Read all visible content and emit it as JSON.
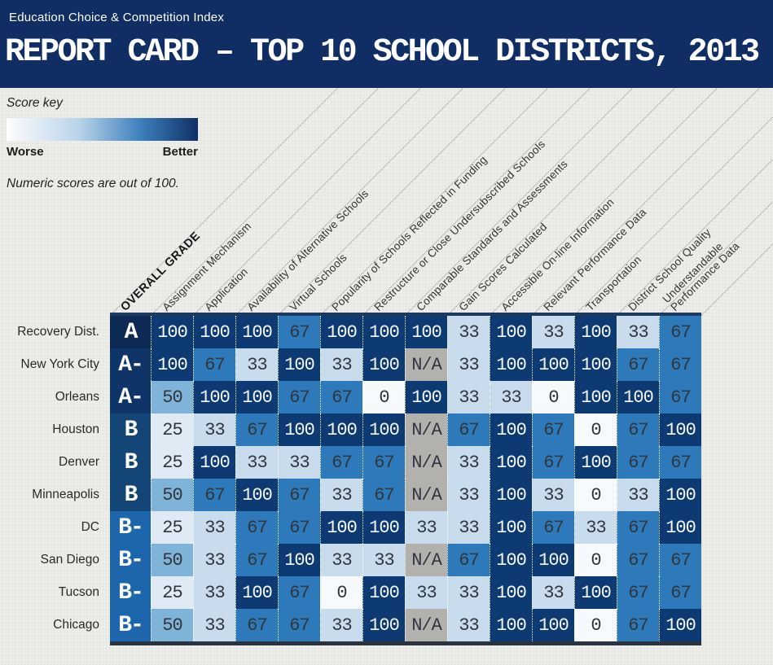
{
  "header": {
    "eyebrow": "Education Choice & Competition Index",
    "title": "REPORT CARD – TOP 10 SCHOOL DISTRICTS, 2013"
  },
  "score_key": {
    "label": "Score key",
    "worse": "Worse",
    "better": "Better",
    "note": "Numeric scores are out of 100."
  },
  "chart_data": {
    "type": "heatmap",
    "title": "REPORT CARD – TOP 10 SCHOOL DISTRICTS, 2013",
    "subtitle": "Education Choice & Competition Index",
    "scale": {
      "min_label": "Worse",
      "max_label": "Better",
      "note": "Numeric scores are out of 100.",
      "max": 100
    },
    "grade_column_header": "OVERALL GRADE",
    "columns": [
      "Assignment Mechanism",
      "Application",
      "Availability of Alternative Schools",
      "Virtual Schools",
      "Popularity of Schools Reflected in Funding",
      "Restructure or Close Undersubscribed Schools",
      "Comparable Standards and Assessments",
      "Gain Scores Calculated",
      "Accessible On-line Information",
      "Relevant Performance Data",
      "Transportation",
      "District School Quality",
      "Understandable\nPerformance Data"
    ],
    "rows": [
      {
        "district": "Recovery Dist.",
        "grade": "A",
        "values": [
          "100",
          "100",
          "100",
          "67",
          "100",
          "100",
          "100",
          "33",
          "100",
          "33",
          "100",
          "33",
          "67"
        ]
      },
      {
        "district": "New York City",
        "grade": "A-",
        "values": [
          "100",
          "67",
          "33",
          "100",
          "33",
          "100",
          "N/A",
          "33",
          "100",
          "100",
          "100",
          "67",
          "67"
        ]
      },
      {
        "district": "Orleans",
        "grade": "A-",
        "values": [
          "50",
          "100",
          "100",
          "67",
          "67",
          "0",
          "100",
          "33",
          "33",
          "0",
          "100",
          "100",
          "67"
        ]
      },
      {
        "district": "Houston",
        "grade": "B",
        "values": [
          "25",
          "33",
          "67",
          "100",
          "100",
          "100",
          "N/A",
          "67",
          "100",
          "67",
          "0",
          "67",
          "100"
        ]
      },
      {
        "district": "Denver",
        "grade": "B",
        "values": [
          "25",
          "100",
          "33",
          "33",
          "67",
          "67",
          "N/A",
          "33",
          "100",
          "67",
          "100",
          "67",
          "67"
        ]
      },
      {
        "district": "Minneapolis",
        "grade": "B",
        "values": [
          "50",
          "67",
          "100",
          "67",
          "33",
          "67",
          "N/A",
          "33",
          "100",
          "33",
          "0",
          "33",
          "100"
        ]
      },
      {
        "district": "DC",
        "grade": "B-",
        "values": [
          "25",
          "33",
          "67",
          "67",
          "100",
          "100",
          "33",
          "33",
          "100",
          "67",
          "33",
          "67",
          "100"
        ]
      },
      {
        "district": "San Diego",
        "grade": "B-",
        "values": [
          "50",
          "33",
          "67",
          "100",
          "33",
          "33",
          "N/A",
          "67",
          "100",
          "100",
          "0",
          "67",
          "67"
        ]
      },
      {
        "district": "Tucson",
        "grade": "B-",
        "values": [
          "25",
          "33",
          "100",
          "67",
          "0",
          "100",
          "33",
          "33",
          "100",
          "33",
          "100",
          "67",
          "67"
        ]
      },
      {
        "district": "Chicago",
        "grade": "B-",
        "values": [
          "50",
          "33",
          "67",
          "67",
          "33",
          "100",
          "N/A",
          "33",
          "100",
          "100",
          "0",
          "67",
          "100"
        ]
      }
    ]
  },
  "colors": {
    "band": "#102e63",
    "value_bg": {
      "100": "#0e3a74",
      "67": "#2e79b9",
      "50": "#7fb3d8",
      "33": "#c9dcee",
      "25": "#dfeaf4",
      "0": "#f7fafd",
      "N/A": "#b3b1ae"
    },
    "grade_bg": {
      "A": "#0c2a54",
      "A-": "#0e3468",
      "B": "#134577",
      "B-": "#1e66ab"
    },
    "text_light": "#f4f7fb",
    "text_dark": "#30363e",
    "gradient_from": "#fdfdfd",
    "gradient_mid1": "#b9d3ea",
    "gradient_mid2": "#3c80bd",
    "gradient_to": "#0f3066"
  }
}
